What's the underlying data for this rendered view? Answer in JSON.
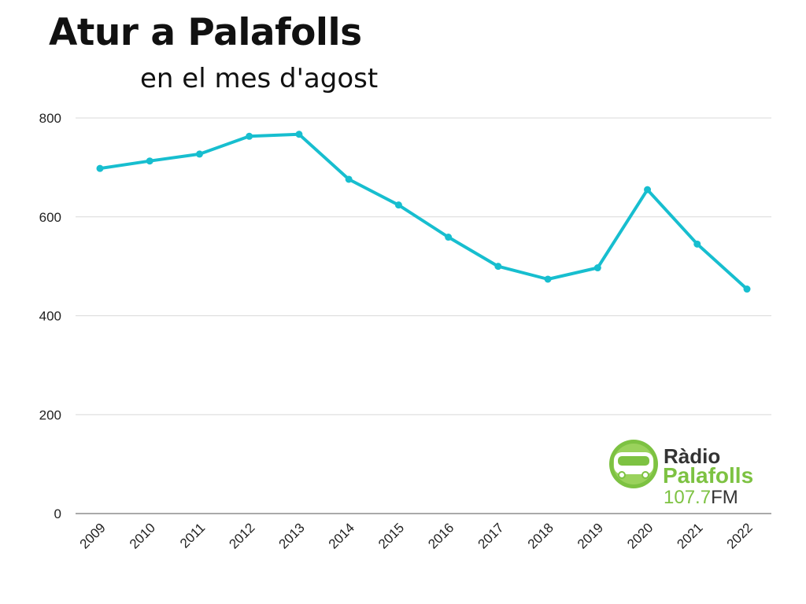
{
  "header": {
    "title": "Atur a Palafolls",
    "subtitle": "en el mes d'agost"
  },
  "logo": {
    "line1": "Ràdio",
    "line2": "Palafolls",
    "freq": "107.7",
    "band": "FM",
    "green": "#7dc242",
    "dark": "#333333"
  },
  "chart_data": {
    "type": "line",
    "title": "Atur a Palafolls",
    "subtitle": "en el mes d'agost",
    "xlabel": "",
    "ylabel": "",
    "categories": [
      "2009",
      "2010",
      "2011",
      "2012",
      "2013",
      "2014",
      "2015",
      "2016",
      "2017",
      "2018",
      "2019",
      "2020",
      "2021",
      "2022"
    ],
    "series": [
      {
        "values": [
          698,
          713,
          727,
          763,
          767,
          676,
          624,
          559,
          500,
          474,
          497,
          655,
          545,
          454
        ]
      }
    ],
    "ylim": [
      0,
      800
    ],
    "yticks": [
      0,
      200,
      400,
      600,
      800
    ],
    "grid": true,
    "legend": "none",
    "line_color": "#17becf"
  }
}
